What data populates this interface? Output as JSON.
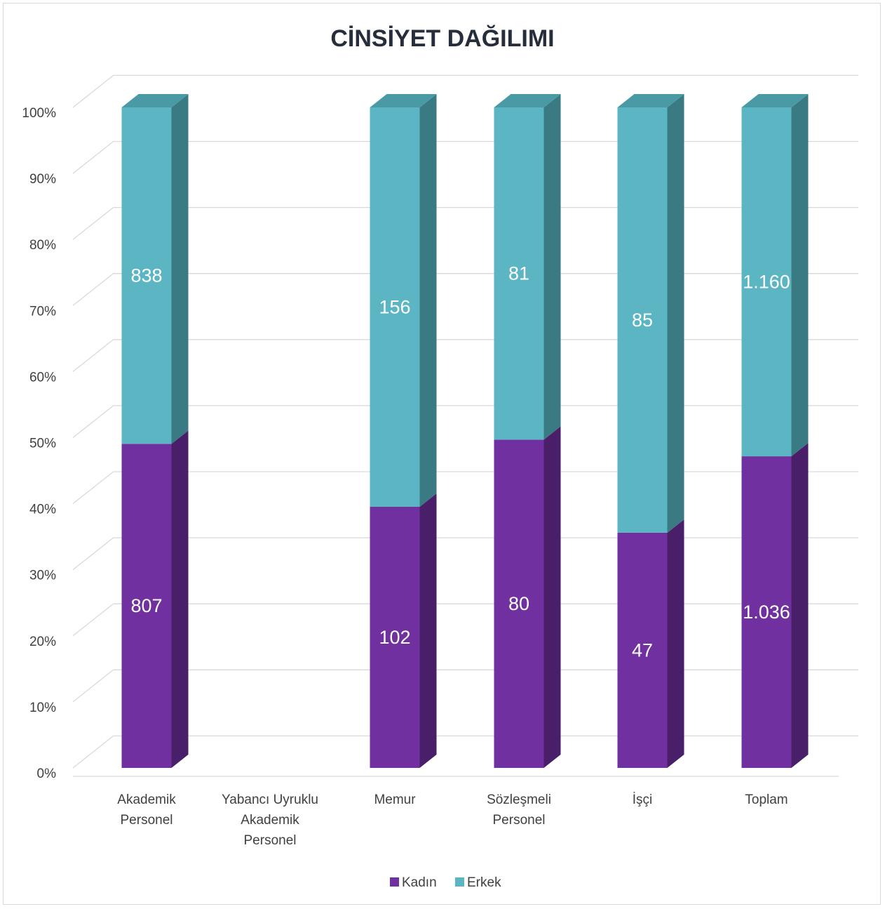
{
  "chart_data": {
    "type": "bar",
    "stacked": "percent",
    "three_d": true,
    "title": "CİNSİYET DAĞILIMI",
    "categories": [
      [
        "Akademik",
        "Personel"
      ],
      [
        "Yabancı Uyruklu",
        "Akademik",
        "Personel"
      ],
      [
        "Memur"
      ],
      [
        "Sözleşmeli",
        "Personel"
      ],
      [
        "İşçi"
      ],
      [
        "Toplam"
      ]
    ],
    "series": [
      {
        "name": "Kadın",
        "color": "#7030a0",
        "side_color": "#4a1f6a",
        "top_color": "#5a2a82",
        "values": [
          807,
          null,
          102,
          80,
          47,
          1036
        ],
        "labels": [
          "807",
          "",
          "102",
          "80",
          "47",
          "1.036"
        ]
      },
      {
        "name": "Erkek",
        "color": "#5bb5c2",
        "side_color": "#3a7a83",
        "top_color": "#4a9aa6",
        "values": [
          838,
          null,
          156,
          81,
          85,
          1160
        ],
        "labels": [
          "838",
          "",
          "156",
          "81",
          "85",
          "1.160"
        ]
      }
    ],
    "yticks": [
      "0%",
      "10%",
      "20%",
      "30%",
      "40%",
      "50%",
      "60%",
      "70%",
      "80%",
      "90%",
      "100%"
    ],
    "ylim": [
      0,
      100
    ],
    "grid": true,
    "legend": "bottom"
  }
}
